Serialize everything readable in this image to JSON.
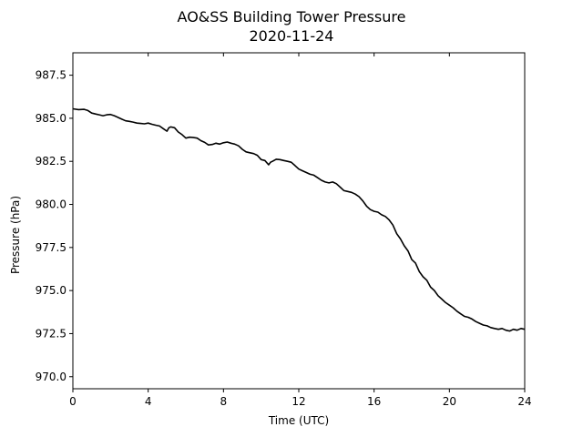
{
  "chart_data": {
    "type": "line",
    "title": "AO&SS Building Tower Pressure",
    "subtitle": "2020-11-24",
    "xlabel": "Time (UTC)",
    "ylabel": "Pressure (hPa)",
    "xlim": [
      0,
      24
    ],
    "ylim": [
      969.3,
      988.8
    ],
    "xticks": [
      0,
      4,
      8,
      12,
      16,
      20,
      24
    ],
    "xtick_labels": [
      "0",
      "4",
      "8",
      "12",
      "16",
      "20",
      "24"
    ],
    "yticks": [
      970.0,
      972.5,
      975.0,
      977.5,
      980.0,
      982.5,
      985.0,
      987.5
    ],
    "ytick_labels": [
      "970.0",
      "972.5",
      "975.0",
      "977.5",
      "980.0",
      "982.5",
      "985.0",
      "987.5"
    ],
    "grid": false,
    "legend": false,
    "line_color": "#000000",
    "series": [
      {
        "x": [
          0,
          0.3,
          0.6,
          0.8,
          1.0,
          1.2,
          1.4,
          1.6,
          1.8,
          2.0,
          2.2,
          2.4,
          2.6,
          2.8,
          3.0,
          3.2,
          3.4,
          3.6,
          3.8,
          4.0,
          4.2,
          4.4,
          4.6,
          4.8,
          5.0,
          5.1,
          5.2,
          5.4,
          5.6,
          5.8,
          6.0,
          6.2,
          6.4,
          6.6,
          6.8,
          7.0,
          7.2,
          7.4,
          7.6,
          7.8,
          8.0,
          8.2,
          8.4,
          8.6,
          8.8,
          9.0,
          9.2,
          9.4,
          9.6,
          9.8,
          10.0,
          10.2,
          10.4,
          10.5,
          10.6,
          10.8,
          11.0,
          11.2,
          11.4,
          11.6,
          11.8,
          12.0,
          12.2,
          12.4,
          12.6,
          12.8,
          13.0,
          13.2,
          13.4,
          13.6,
          13.8,
          14.0,
          14.2,
          14.4,
          14.6,
          14.8,
          15.0,
          15.2,
          15.4,
          15.6,
          15.8,
          16.0,
          16.2,
          16.4,
          16.6,
          16.8,
          17.0,
          17.2,
          17.4,
          17.6,
          17.8,
          18.0,
          18.2,
          18.4,
          18.6,
          18.8,
          19.0,
          19.2,
          19.4,
          19.6,
          19.8,
          20.0,
          20.2,
          20.4,
          20.6,
          20.8,
          21.0,
          21.2,
          21.4,
          21.6,
          21.8,
          22.0,
          22.2,
          22.4,
          22.6,
          22.8,
          23.0,
          23.2,
          23.4,
          23.6,
          23.8,
          24.0
        ],
        "values": [
          985.55,
          985.5,
          985.52,
          985.45,
          985.3,
          985.25,
          985.2,
          985.15,
          985.2,
          985.22,
          985.15,
          985.05,
          984.95,
          984.85,
          984.82,
          984.78,
          984.72,
          984.7,
          984.68,
          984.72,
          984.65,
          984.6,
          984.55,
          984.4,
          984.25,
          984.45,
          984.5,
          984.45,
          984.2,
          984.05,
          983.85,
          983.9,
          983.88,
          983.85,
          983.7,
          983.6,
          983.45,
          983.48,
          983.55,
          983.5,
          983.58,
          983.62,
          983.55,
          983.5,
          983.4,
          983.2,
          983.05,
          983.0,
          982.95,
          982.85,
          982.6,
          982.55,
          982.3,
          982.45,
          982.5,
          982.62,
          982.6,
          982.55,
          982.5,
          982.45,
          982.25,
          982.05,
          981.95,
          981.85,
          981.75,
          981.7,
          981.55,
          981.4,
          981.3,
          981.25,
          981.3,
          981.2,
          981.0,
          980.8,
          980.75,
          980.7,
          980.6,
          980.45,
          980.2,
          979.9,
          979.7,
          979.6,
          979.55,
          979.4,
          979.3,
          979.1,
          978.8,
          978.3,
          978.0,
          977.6,
          977.3,
          976.8,
          976.6,
          976.1,
          975.8,
          975.6,
          975.2,
          975.0,
          974.7,
          974.5,
          974.3,
          974.15,
          974.0,
          973.8,
          973.65,
          973.5,
          973.45,
          973.35,
          973.2,
          973.1,
          973.0,
          972.95,
          972.85,
          972.8,
          972.75,
          972.8,
          972.7,
          972.65,
          972.75,
          972.7,
          972.8,
          972.75
        ]
      }
    ]
  }
}
